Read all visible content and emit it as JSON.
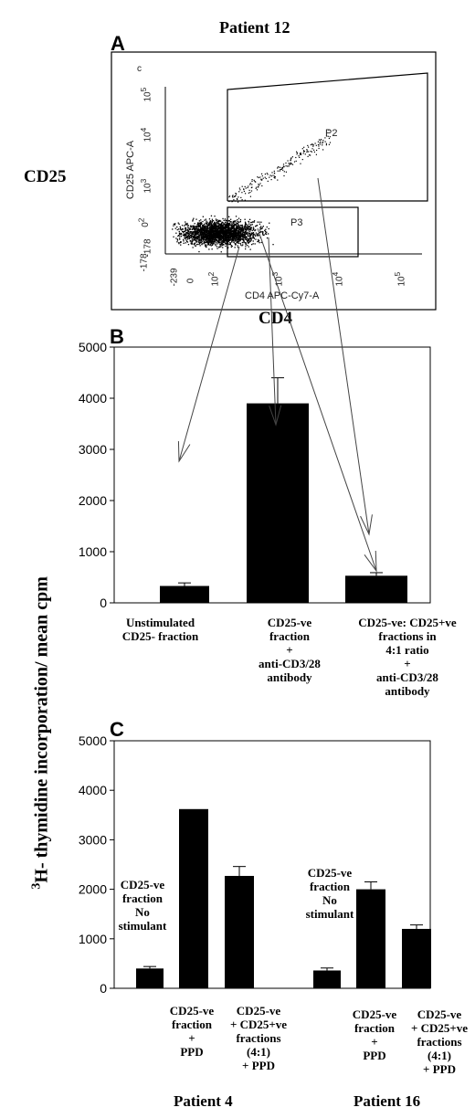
{
  "header": {
    "patient_title": "Patient 12"
  },
  "flow": {
    "panel": "A",
    "corner_mark": "c",
    "y_label": "CD25 APC-A",
    "x_label": "CD4 APC-Cy7-A",
    "big_y_label": "CD25",
    "big_x_label": "CD4",
    "gates": [
      "P2",
      "P3"
    ],
    "y_ticks": [
      "10",
      "10",
      "10",
      "0",
      "-178"
    ],
    "y_tick_exps": [
      "5",
      "4",
      "3",
      "2",
      ""
    ],
    "x_ticks": [
      "-239",
      "0",
      "10",
      "10",
      "10",
      "10"
    ],
    "x_tick_exps": [
      "",
      "",
      "2",
      "3",
      "4",
      "5"
    ]
  },
  "y_axis_title_main": "H- thymidine incorporation/ mean cpm",
  "y_axis_title_sup": "3",
  "chart_data": [
    {
      "type": "bar",
      "panel": "B",
      "categories": [
        "Unstimulated\nCD25- fraction",
        "CD25-ve\nfraction\n+\nanti-CD3/28\nantibody",
        "CD25-ve: CD25+ve\nfractions in\n4:1 ratio\n+\nanti-CD3/28\nantibody"
      ],
      "values": [
        330,
        3900,
        530
      ],
      "errors": [
        60,
        500,
        60
      ],
      "ylim": [
        0,
        5000
      ],
      "yticks": [
        0,
        1000,
        2000,
        3000,
        4000,
        5000
      ],
      "color": "#000000"
    },
    {
      "type": "bar",
      "panel": "C",
      "groups": [
        {
          "name": "Patient 4",
          "no_stim_label": "CD25-ve\nfraction\nNo\nstimulant",
          "categories": [
            "",
            "CD25-ve\nfraction\n+\nPPD",
            "CD25-ve\n+ CD25+ve\nfractions\n(4:1)\n+ PPD"
          ],
          "values": [
            400,
            3620,
            2270
          ],
          "errors": [
            40,
            0,
            190
          ]
        },
        {
          "name": "Patient 16",
          "no_stim_label": "CD25-ve\nfraction\nNo\nstimulant",
          "categories": [
            "",
            "CD25-ve\nfraction\n+\nPPD",
            "CD25-ve\n+ CD25+ve\nfractions\n(4:1)\n+ PPD"
          ],
          "values": [
            360,
            2000,
            1200
          ],
          "errors": [
            50,
            150,
            80
          ]
        }
      ],
      "ylim": [
        0,
        5000
      ],
      "yticks": [
        0,
        1000,
        2000,
        3000,
        4000,
        5000
      ],
      "color": "#000000"
    }
  ]
}
